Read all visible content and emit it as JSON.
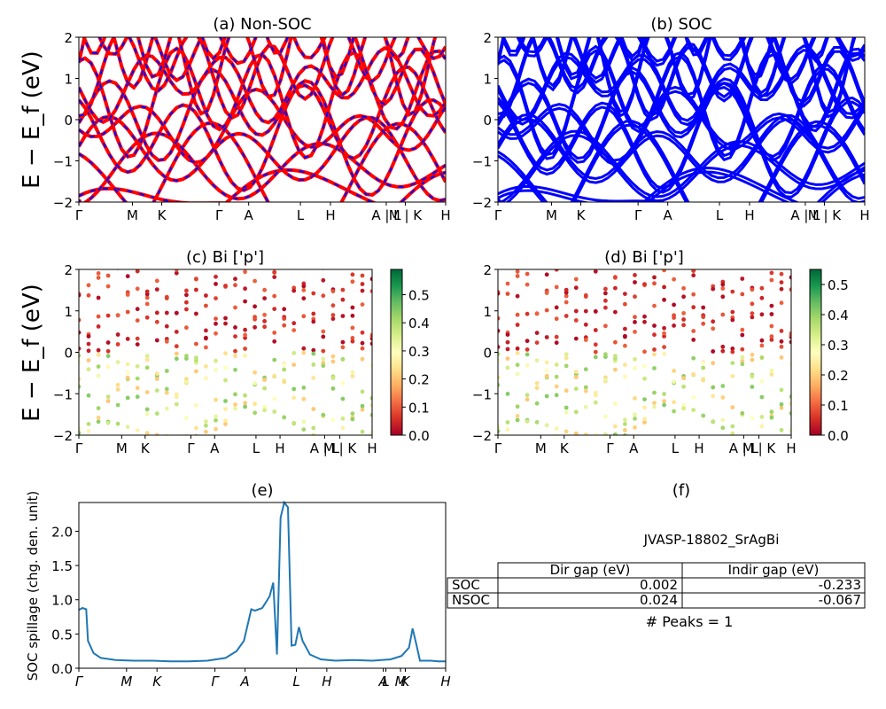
{
  "chart_data": [
    {
      "id": "a",
      "type": "line",
      "title": "(a) Non-SOC",
      "ylabel": "E − E_f (eV)",
      "ylim": [
        -2,
        2
      ],
      "yticks": [
        "2",
        "1",
        "0",
        "−1",
        "−2"
      ],
      "kpath": [
        "Γ",
        "M",
        "K",
        "Γ",
        "A",
        "L",
        "H",
        "A | L",
        "M | K",
        "H"
      ],
      "series": [
        {
          "color": "#ff0000",
          "style": "thick solid"
        },
        {
          "color": "#0000ff",
          "style": "dashed overlay"
        }
      ]
    },
    {
      "id": "b",
      "type": "line",
      "title": "(b) SOC",
      "ylim": [
        -2,
        2
      ],
      "yticks": [
        "2",
        "1",
        "0",
        "−1",
        "−2"
      ],
      "kpath": [
        "Γ",
        "M",
        "K",
        "Γ",
        "A",
        "L",
        "H",
        "A | L",
        "M | K",
        "H"
      ],
      "series": [
        {
          "color": "#0000ff",
          "style": "solid"
        }
      ]
    },
    {
      "id": "c",
      "type": "scatter",
      "title": "(c)  Bi ['p']",
      "ylabel": "E − E_f (eV)",
      "ylim": [
        -2,
        2
      ],
      "yticks": [
        "2",
        "1",
        "0",
        "−1",
        "−2"
      ],
      "kpath": [
        "Γ",
        "M",
        "K",
        "Γ",
        "A",
        "L",
        "H",
        "A | L",
        "M | K",
        "H"
      ],
      "colorbar": {
        "cmap": "RdYlGn",
        "range": [
          0,
          0.59
        ],
        "ticks": [
          "0.5",
          "0.4",
          "0.3",
          "0.2",
          "0.1",
          "0.0"
        ]
      }
    },
    {
      "id": "d",
      "type": "scatter",
      "title": "(d) Bi ['p']",
      "ylim": [
        -2,
        2
      ],
      "yticks": [
        "2",
        "1",
        "0",
        "−1",
        "−2"
      ],
      "kpath": [
        "Γ",
        "M",
        "K",
        "Γ",
        "A",
        "L",
        "H",
        "A | L",
        "M | K",
        "H"
      ],
      "colorbar": {
        "cmap": "RdYlGn",
        "range": [
          0,
          0.55
        ],
        "ticks": [
          "0.5",
          "0.4",
          "0.3",
          "0.2",
          "0.1",
          "0.0"
        ]
      }
    },
    {
      "id": "e",
      "type": "line",
      "title": "(e)",
      "ylabel": "SOC spillage (chg. den. unit)",
      "ylim": [
        0,
        2.42
      ],
      "yticks": [
        "2.0",
        "1.5",
        "1.0",
        "0.5",
        "0.0"
      ],
      "kpath": [
        "Γ",
        "M",
        "K",
        "Γ",
        "A",
        "L",
        "H",
        "A",
        "L",
        "M",
        "K",
        "H"
      ],
      "series": [
        {
          "color": "#1f77b4",
          "points": [
            [
              0,
              0.85
            ],
            [
              0.01,
              0.88
            ],
            [
              0.02,
              0.86
            ],
            [
              0.025,
              0.4
            ],
            [
              0.04,
              0.22
            ],
            [
              0.06,
              0.15
            ],
            [
              0.1,
              0.12
            ],
            [
              0.15,
              0.11
            ],
            [
              0.2,
              0.11
            ],
            [
              0.25,
              0.1
            ],
            [
              0.3,
              0.1
            ],
            [
              0.35,
              0.11
            ],
            [
              0.4,
              0.15
            ],
            [
              0.43,
              0.25
            ],
            [
              0.45,
              0.4
            ],
            [
              0.47,
              0.86
            ],
            [
              0.48,
              0.84
            ],
            [
              0.5,
              0.88
            ],
            [
              0.52,
              1.05
            ],
            [
              0.53,
              1.25
            ],
            [
              0.54,
              0.2
            ],
            [
              0.55,
              2.2
            ],
            [
              0.56,
              2.42
            ],
            [
              0.57,
              2.35
            ],
            [
              0.58,
              0.33
            ],
            [
              0.59,
              0.34
            ],
            [
              0.6,
              0.6
            ],
            [
              0.61,
              0.4
            ],
            [
              0.63,
              0.2
            ],
            [
              0.66,
              0.13
            ],
            [
              0.7,
              0.11
            ],
            [
              0.75,
              0.12
            ],
            [
              0.8,
              0.11
            ],
            [
              0.85,
              0.13
            ],
            [
              0.88,
              0.18
            ],
            [
              0.9,
              0.3
            ],
            [
              0.91,
              0.58
            ],
            [
              0.92,
              0.35
            ],
            [
              0.93,
              0.11
            ],
            [
              0.96,
              0.11
            ],
            [
              0.98,
              0.1
            ],
            [
              1,
              0.1
            ]
          ]
        }
      ]
    }
  ],
  "panel_f": {
    "title": "(f)",
    "material": "JVASP-18802_SrAgBi",
    "table": {
      "columns": [
        "Dir gap (eV)",
        "Indir gap (eV)"
      ],
      "rows": [
        {
          "label": "SOC",
          "dir": "0.002",
          "indir": "-0.233"
        },
        {
          "label": "NSOC",
          "dir": "0.024",
          "indir": "-0.067"
        }
      ]
    },
    "peaks": "# Peaks = 1"
  }
}
